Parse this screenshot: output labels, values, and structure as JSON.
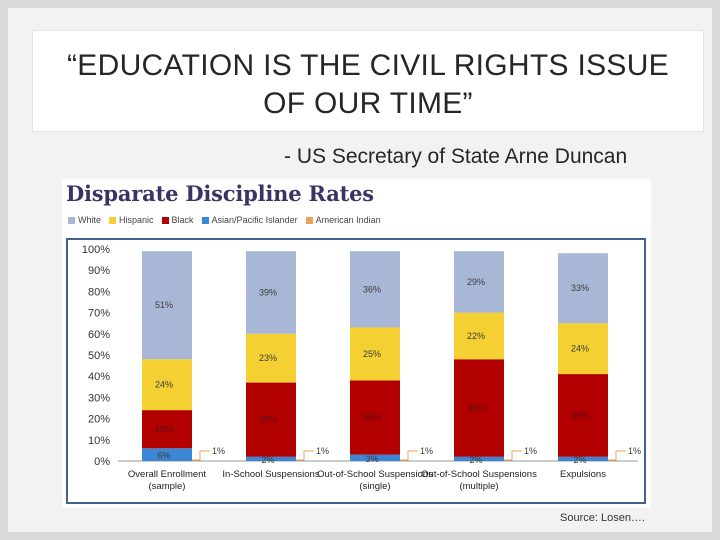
{
  "slide": {
    "title_line1": "“EDUCATION IS THE CIVIL RIGHTS ISSUE",
    "title_line2": "OF OUR TIME”",
    "attribution": "- US Secretary of State Arne Duncan",
    "source": "Source: Losen…."
  },
  "colors": {
    "White": "#a9b7d6",
    "Hispanic": "#f5d033",
    "Black": "#b20000",
    "Asian/Pacific Islander": "#3c86d6",
    "American Indian": "#f0a05a"
  },
  "chart_data": {
    "type": "bar",
    "stacked": true,
    "title": "Disparate Discipline Rates",
    "categories": [
      "Overall Enrollment (sample)",
      "In-School Suspensions",
      "Out-of-School Suspensions (single)",
      "Out-of-School Suspensions (multiple)",
      "Expulsions"
    ],
    "series": [
      {
        "name": "White",
        "values": [
          51,
          39,
          36,
          29,
          33
        ],
        "labels": [
          "51%",
          "39%",
          "36%",
          "29%",
          "33%"
        ]
      },
      {
        "name": "Hispanic",
        "values": [
          24,
          23,
          25,
          22,
          24
        ],
        "labels": [
          "24%",
          "23%",
          "25%",
          "22%",
          "24%"
        ]
      },
      {
        "name": "Black",
        "values": [
          18,
          35,
          35,
          46,
          39
        ],
        "labels": [
          "18%",
          "35%",
          "35%",
          "46%",
          "39%"
        ]
      },
      {
        "name": "Asian/Pacific Islander",
        "values": [
          6,
          2,
          3,
          2,
          2
        ],
        "labels": [
          "6%",
          "2%",
          "3%",
          "2%",
          "2%"
        ]
      },
      {
        "name": "American Indian",
        "values": [
          1,
          1,
          1,
          1,
          1
        ],
        "labels": [
          "1%",
          "1%",
          "1%",
          "1%",
          "1%"
        ]
      }
    ],
    "ylim": [
      0,
      100
    ],
    "yticks": [
      "0%",
      "10%",
      "20%",
      "30%",
      "40%",
      "50%",
      "60%",
      "70%",
      "80%",
      "90%",
      "100%"
    ],
    "legend_position": "top-left",
    "grid": false
  }
}
